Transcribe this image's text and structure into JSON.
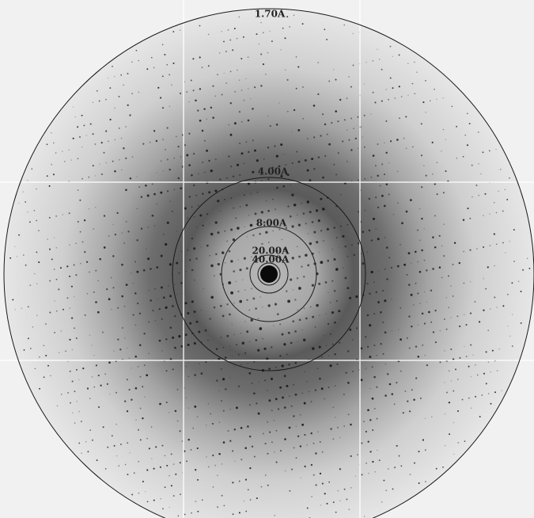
{
  "rings": [
    {
      "label": "1.70A"
    },
    {
      "label": "4.00A"
    },
    {
      "label": "8.00A"
    },
    {
      "label": "20.00A"
    },
    {
      "label": "40.00A"
    }
  ]
}
